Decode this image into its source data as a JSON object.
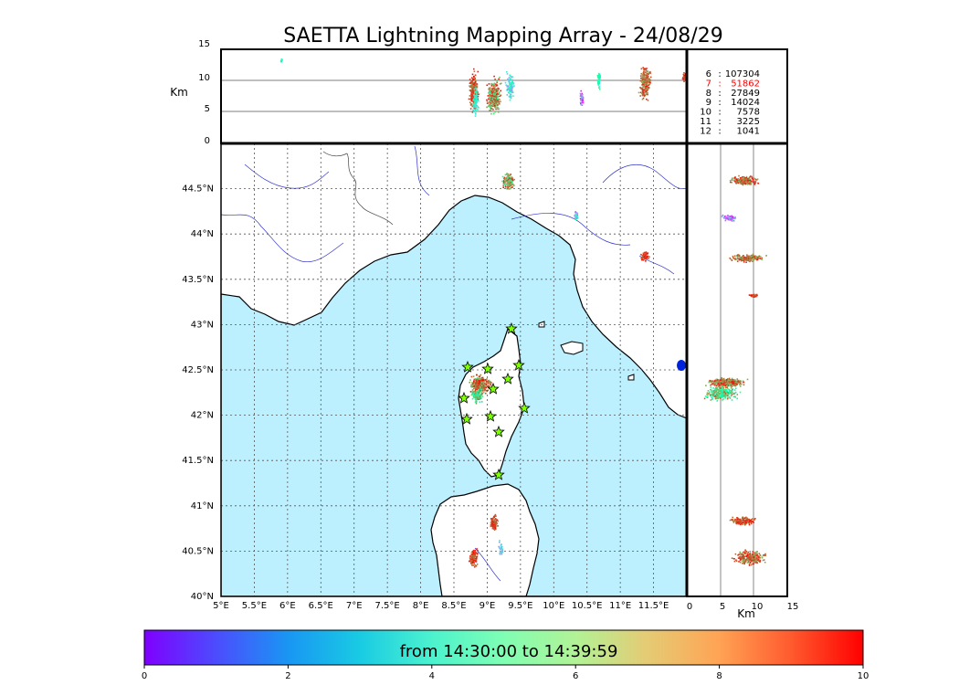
{
  "title": "SAETTA Lightning Mapping Array - 24/08/29",
  "colorbar": {
    "label": "from 14:30:00 to 14:39:59",
    "ticks": [
      "0",
      "2",
      "4",
      "6",
      "8",
      "10"
    ]
  },
  "top_panel": {
    "ylabel": "Km",
    "yticks": [
      "0",
      "5",
      "10",
      "15"
    ]
  },
  "right_panel": {
    "xlabel": "Km",
    "xticks": [
      "0",
      "5",
      "10",
      "15"
    ]
  },
  "map": {
    "lon_ticks": [
      "5°E",
      "5.5°E",
      "6°E",
      "6.5°E",
      "7°E",
      "7.5°E",
      "8°E",
      "8.5°E",
      "9°E",
      "9.5°E",
      "10°E",
      "10.5°E",
      "11°E",
      "11.5°E"
    ],
    "lat_ticks": [
      "40°N",
      "40.5°N",
      "41°N",
      "41.5°N",
      "42°N",
      "42.5°N",
      "43°N",
      "43.5°N",
      "44°N",
      "44.5°N"
    ],
    "sea_color": "#bdf0ff",
    "station_color": "#7fff00"
  },
  "station_stats": [
    {
      "station": "6",
      "sep": ":",
      "count": "107304",
      "highlight": false
    },
    {
      "station": "7",
      "sep": ":",
      "count": "51862",
      "highlight": true
    },
    {
      "station": "8",
      "sep": ":",
      "count": "27849",
      "highlight": false
    },
    {
      "station": "9",
      "sep": ":",
      "count": "14024",
      "highlight": false
    },
    {
      "station": "10",
      "sep": ":",
      "count": "7578",
      "highlight": false
    },
    {
      "station": "11",
      "sep": ":",
      "count": "3225",
      "highlight": false
    },
    {
      "station": "12",
      "sep": ":",
      "count": "1041",
      "highlight": false
    }
  ],
  "stats_highlight_color": "#ff0000"
}
